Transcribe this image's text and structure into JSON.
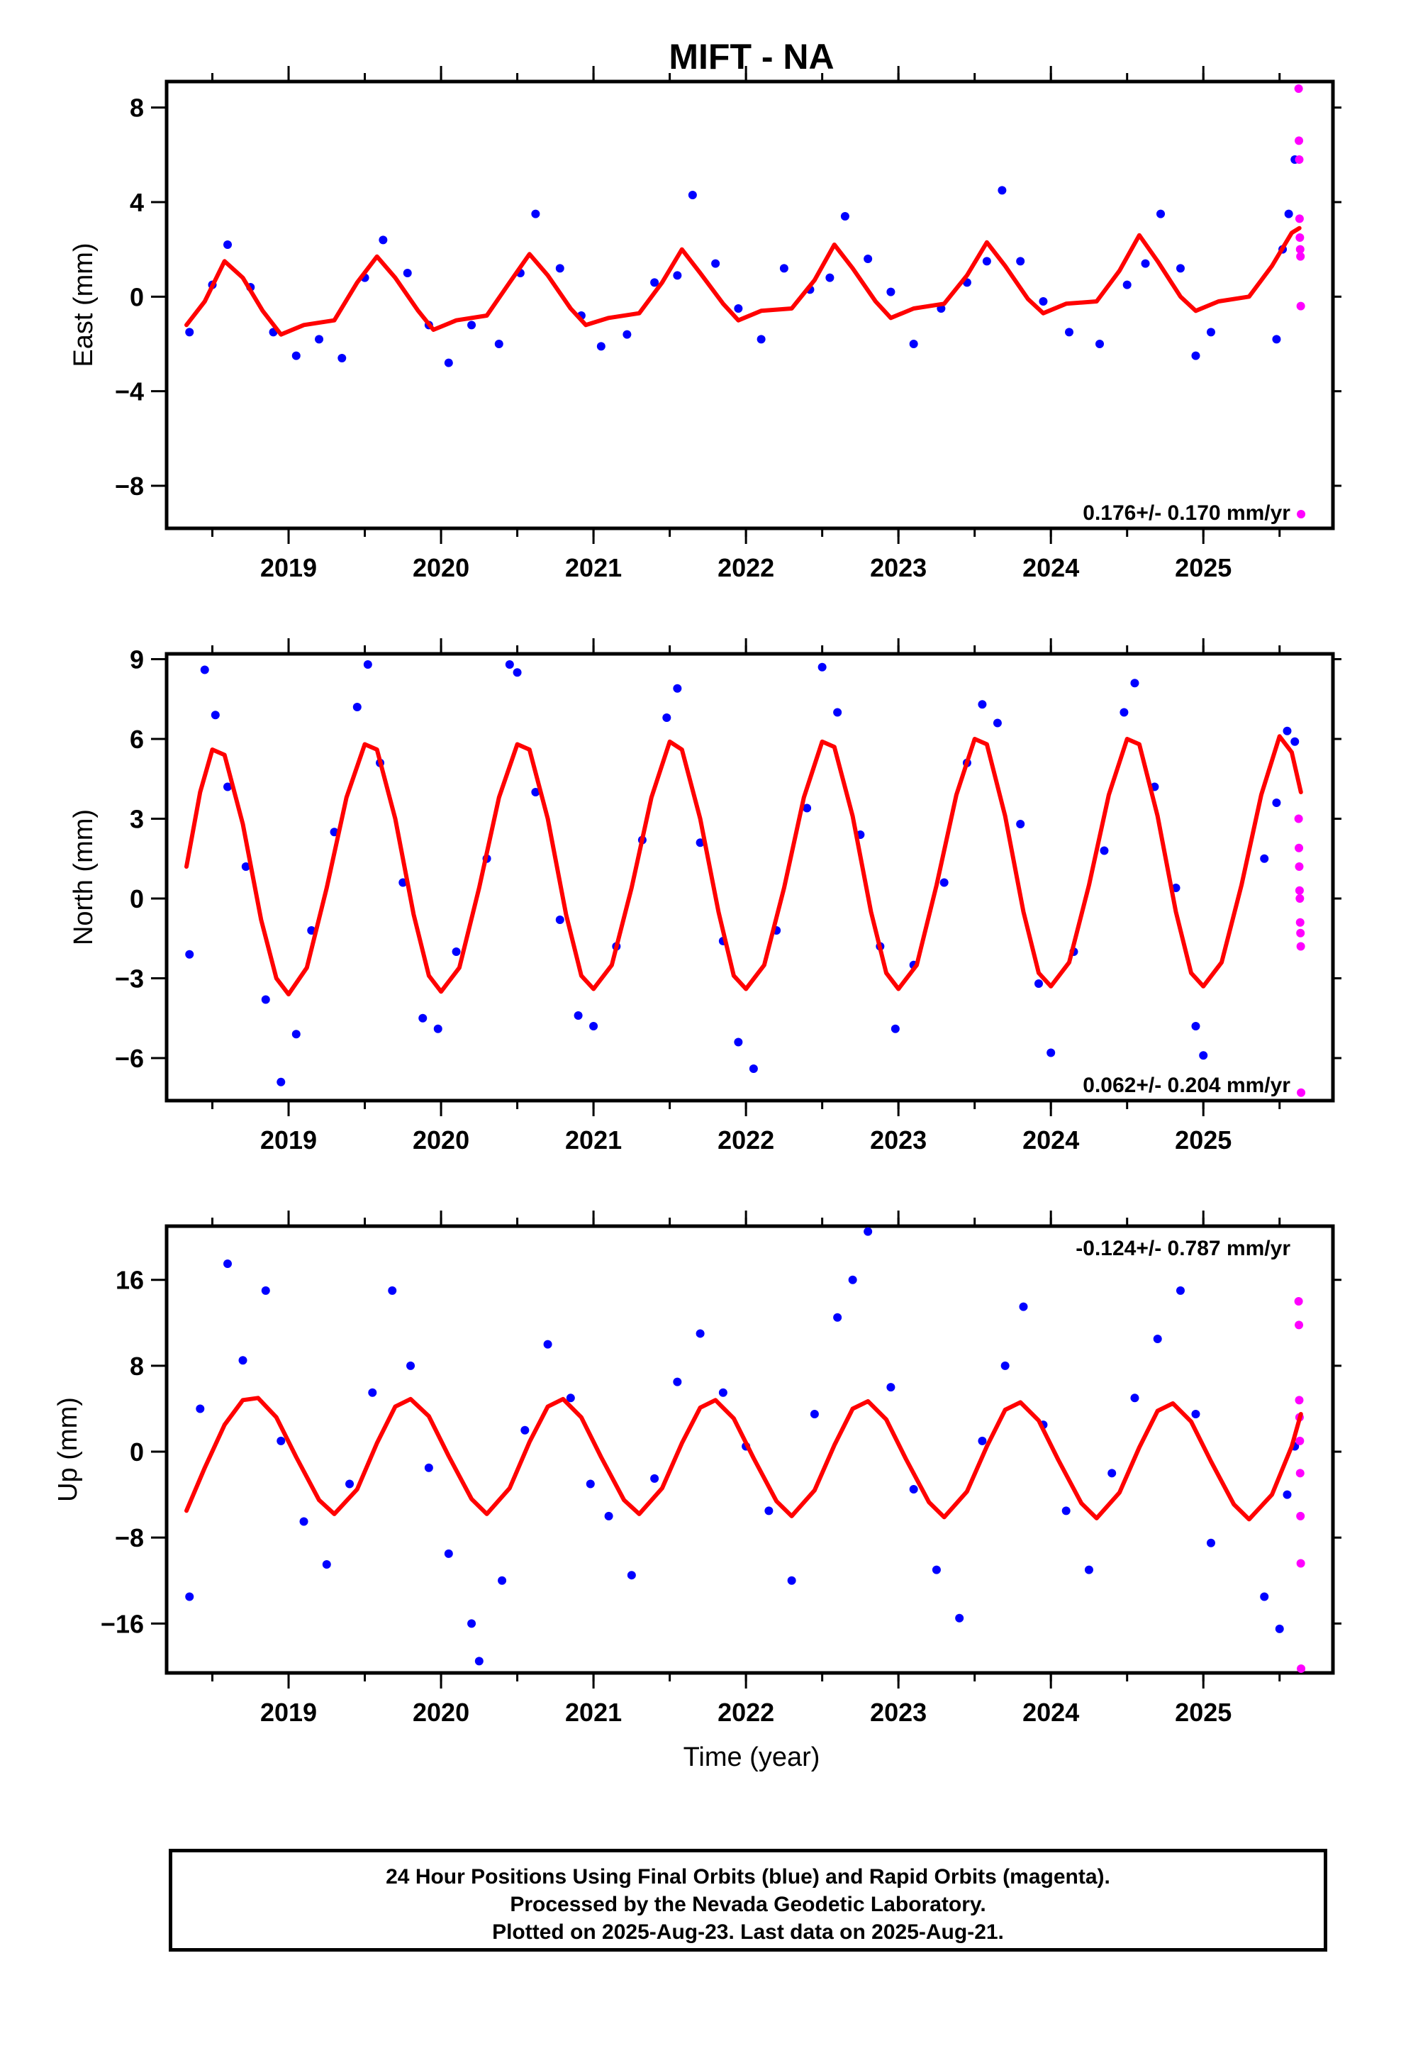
{
  "title": "MIFT - NA",
  "xlabel": "Time (year)",
  "footer": {
    "line1": "24 Hour Positions Using Final Orbits (blue) and Rapid Orbits (magenta).",
    "line2": "Processed by the Nevada Geodetic Laboratory.",
    "line3": "Plotted on 2025-Aug-23. Last data on 2025-Aug-21."
  },
  "colors": {
    "final_orbits": "#0000ff",
    "rapid_orbits": "#ff00ff",
    "model_fit": "#ff0000"
  },
  "chart_data": [
    {
      "type": "scatter",
      "panel": "east",
      "ylabel": "East (mm)",
      "xlim": [
        2018.2,
        2025.85
      ],
      "ylim": [
        -9.8,
        9.1
      ],
      "xticks": [
        2019,
        2020,
        2021,
        2022,
        2023,
        2024,
        2025
      ],
      "yticks": [
        8,
        4,
        0,
        -4,
        -8
      ],
      "rate_label": "0.176+/- 0.170 mm/yr",
      "rate_position": "bottom-right",
      "model": {
        "name": "red fit",
        "x": [
          2018.33,
          2018.45,
          2018.58,
          2018.7,
          2018.83,
          2018.95,
          2019.1,
          2019.3,
          2019.45,
          2019.58,
          2019.7,
          2019.85,
          2019.95,
          2020.1,
          2020.3,
          2020.45,
          2020.58,
          2020.7,
          2020.85,
          2020.95,
          2021.1,
          2021.3,
          2021.45,
          2021.58,
          2021.7,
          2021.85,
          2021.95,
          2022.1,
          2022.3,
          2022.45,
          2022.58,
          2022.7,
          2022.85,
          2022.95,
          2023.1,
          2023.3,
          2023.45,
          2023.58,
          2023.7,
          2023.85,
          2023.95,
          2024.1,
          2024.3,
          2024.45,
          2024.58,
          2024.7,
          2024.85,
          2024.95,
          2025.1,
          2025.3,
          2025.45,
          2025.58,
          2025.63
        ],
        "values": [
          -1.2,
          -0.2,
          1.5,
          0.8,
          -0.6,
          -1.6,
          -1.2,
          -1.0,
          0.6,
          1.7,
          0.8,
          -0.6,
          -1.4,
          -1.0,
          -0.8,
          0.6,
          1.8,
          0.9,
          -0.5,
          -1.2,
          -0.9,
          -0.7,
          0.6,
          2.0,
          1.0,
          -0.3,
          -1.0,
          -0.6,
          -0.5,
          0.7,
          2.2,
          1.2,
          -0.2,
          -0.9,
          -0.5,
          -0.3,
          0.9,
          2.3,
          1.3,
          -0.1,
          -0.7,
          -0.3,
          -0.2,
          1.1,
          2.6,
          1.5,
          0.0,
          -0.6,
          -0.2,
          0.0,
          1.3,
          2.7,
          2.9
        ]
      },
      "final_orbits": {
        "x": [
          2018.35,
          2018.5,
          2018.6,
          2018.75,
          2018.9,
          2019.05,
          2019.2,
          2019.35,
          2019.5,
          2019.62,
          2019.78,
          2019.92,
          2020.05,
          2020.2,
          2020.38,
          2020.52,
          2020.62,
          2020.78,
          2020.92,
          2021.05,
          2021.22,
          2021.4,
          2021.55,
          2021.65,
          2021.8,
          2021.95,
          2022.1,
          2022.25,
          2022.42,
          2022.55,
          2022.65,
          2022.8,
          2022.95,
          2023.1,
          2023.28,
          2023.45,
          2023.58,
          2023.68,
          2023.8,
          2023.95,
          2024.12,
          2024.32,
          2024.5,
          2024.62,
          2024.72,
          2024.85,
          2024.95,
          2025.05,
          2025.48,
          2025.52,
          2025.56,
          2025.6
        ],
        "values": [
          -1.5,
          0.5,
          2.2,
          0.4,
          -1.5,
          -2.5,
          -1.8,
          -2.6,
          0.8,
          2.4,
          1.0,
          -1.2,
          -2.8,
          -1.2,
          -2.0,
          1.0,
          3.5,
          1.2,
          -0.8,
          -2.1,
          -1.6,
          0.6,
          0.9,
          4.3,
          1.4,
          -0.5,
          -1.8,
          1.2,
          0.3,
          0.8,
          3.4,
          1.6,
          0.2,
          -2.0,
          -0.5,
          0.6,
          1.5,
          4.5,
          1.5,
          -0.2,
          -1.5,
          -2.0,
          0.5,
          1.4,
          3.5,
          1.2,
          -2.5,
          -1.5,
          -1.8,
          2.0,
          3.5,
          5.8
        ]
      },
      "rapid_orbits": {
        "x": [
          2025.625,
          2025.627,
          2025.629,
          2025.631,
          2025.633,
          2025.635,
          2025.637,
          2025.639,
          2025.641
        ],
        "values": [
          8.8,
          6.6,
          5.8,
          3.3,
          2.5,
          2.0,
          1.7,
          -0.4,
          -9.2
        ]
      }
    },
    {
      "type": "scatter",
      "panel": "north",
      "ylabel": "North (mm)",
      "xlim": [
        2018.2,
        2025.85
      ],
      "ylim": [
        -7.6,
        9.2
      ],
      "xticks": [
        2019,
        2020,
        2021,
        2022,
        2023,
        2024,
        2025
      ],
      "yticks": [
        9,
        6,
        3,
        0,
        -3,
        -6
      ],
      "rate_label": "0.062+/- 0.204 mm/yr",
      "rate_position": "bottom-right",
      "model": {
        "name": "red fit",
        "x": [
          2018.33,
          2018.42,
          2018.5,
          2018.58,
          2018.7,
          2018.82,
          2018.92,
          2019.0,
          2019.12,
          2019.25,
          2019.38,
          2019.5,
          2019.58,
          2019.7,
          2019.82,
          2019.92,
          2020.0,
          2020.12,
          2020.25,
          2020.38,
          2020.5,
          2020.58,
          2020.7,
          2020.82,
          2020.92,
          2021.0,
          2021.12,
          2021.25,
          2021.38,
          2021.5,
          2021.58,
          2021.7,
          2021.82,
          2021.92,
          2022.0,
          2022.12,
          2022.25,
          2022.38,
          2022.5,
          2022.58,
          2022.7,
          2022.82,
          2022.92,
          2023.0,
          2023.12,
          2023.25,
          2023.38,
          2023.5,
          2023.58,
          2023.7,
          2023.82,
          2023.92,
          2024.0,
          2024.12,
          2024.25,
          2024.38,
          2024.5,
          2024.58,
          2024.7,
          2024.82,
          2024.92,
          2025.0,
          2025.12,
          2025.25,
          2025.38,
          2025.5,
          2025.58,
          2025.64
        ],
        "values": [
          1.2,
          4.0,
          5.6,
          5.4,
          2.8,
          -0.8,
          -3.0,
          -3.6,
          -2.6,
          0.4,
          3.8,
          5.8,
          5.6,
          3.0,
          -0.6,
          -2.9,
          -3.5,
          -2.6,
          0.4,
          3.8,
          5.8,
          5.6,
          3.0,
          -0.6,
          -2.9,
          -3.4,
          -2.5,
          0.4,
          3.8,
          5.9,
          5.6,
          3.0,
          -0.5,
          -2.9,
          -3.4,
          -2.5,
          0.4,
          3.8,
          5.9,
          5.7,
          3.1,
          -0.5,
          -2.8,
          -3.4,
          -2.5,
          0.5,
          3.9,
          6.0,
          5.8,
          3.1,
          -0.5,
          -2.8,
          -3.3,
          -2.4,
          0.5,
          3.9,
          6.0,
          5.8,
          3.1,
          -0.5,
          -2.8,
          -3.3,
          -2.4,
          0.5,
          3.9,
          6.1,
          5.5,
          4.0
        ]
      },
      "final_orbits": {
        "x": [
          2018.35,
          2018.45,
          2018.52,
          2018.6,
          2018.72,
          2018.85,
          2018.95,
          2019.05,
          2019.15,
          2019.3,
          2019.45,
          2019.52,
          2019.6,
          2019.75,
          2019.88,
          2019.98,
          2020.1,
          2020.3,
          2020.45,
          2020.5,
          2020.62,
          2020.78,
          2020.9,
          2021.0,
          2021.15,
          2021.32,
          2021.48,
          2021.55,
          2021.7,
          2021.85,
          2021.95,
          2022.05,
          2022.2,
          2022.4,
          2022.5,
          2022.6,
          2022.75,
          2022.88,
          2022.98,
          2023.1,
          2023.3,
          2023.45,
          2023.55,
          2023.65,
          2023.8,
          2023.92,
          2024.0,
          2024.15,
          2024.35,
          2024.48,
          2024.55,
          2024.68,
          2024.82,
          2024.95,
          2025.0,
          2025.4,
          2025.48,
          2025.55,
          2025.6
        ],
        "values": [
          -2.1,
          8.6,
          6.9,
          4.2,
          1.2,
          -3.8,
          -6.9,
          -5.1,
          -1.2,
          2.5,
          7.2,
          8.8,
          5.1,
          0.6,
          -4.5,
          -4.9,
          -2.0,
          1.5,
          8.8,
          8.5,
          4.0,
          -0.8,
          -4.4,
          -4.8,
          -1.8,
          2.2,
          6.8,
          7.9,
          2.1,
          -1.6,
          -5.4,
          -6.4,
          -1.2,
          3.4,
          8.7,
          7.0,
          2.4,
          -1.8,
          -4.9,
          -2.5,
          0.6,
          5.1,
          7.3,
          6.6,
          2.8,
          -3.2,
          -5.8,
          -2.0,
          1.8,
          7.0,
          8.1,
          4.2,
          0.4,
          -4.8,
          -5.9,
          1.5,
          3.6,
          6.3,
          5.9
        ]
      },
      "rapid_orbits": {
        "x": [
          2025.625,
          2025.627,
          2025.629,
          2025.631,
          2025.633,
          2025.635,
          2025.637,
          2025.639,
          2025.641
        ],
        "values": [
          3.0,
          1.9,
          1.2,
          0.3,
          0.0,
          -0.9,
          -1.3,
          -1.8,
          -7.3
        ]
      }
    },
    {
      "type": "scatter",
      "panel": "up",
      "ylabel": "Up (mm)",
      "xlim": [
        2018.2,
        2025.85
      ],
      "ylim": [
        -20.6,
        21.0
      ],
      "xticks": [
        2019,
        2020,
        2021,
        2022,
        2023,
        2024,
        2025
      ],
      "yticks": [
        16,
        8,
        0,
        -8,
        -16
      ],
      "rate_label": "-0.124+/- 0.787 mm/yr",
      "rate_position": "top-right",
      "model": {
        "name": "red fit",
        "x": [
          2018.33,
          2018.45,
          2018.58,
          2018.7,
          2018.8,
          2018.92,
          2019.05,
          2019.2,
          2019.3,
          2019.45,
          2019.58,
          2019.7,
          2019.8,
          2019.92,
          2020.05,
          2020.2,
          2020.3,
          2020.45,
          2020.58,
          2020.7,
          2020.8,
          2020.92,
          2021.05,
          2021.2,
          2021.3,
          2021.45,
          2021.58,
          2021.7,
          2021.8,
          2021.92,
          2022.05,
          2022.2,
          2022.3,
          2022.45,
          2022.58,
          2022.7,
          2022.8,
          2022.92,
          2023.05,
          2023.2,
          2023.3,
          2023.45,
          2023.58,
          2023.7,
          2023.8,
          2023.92,
          2024.05,
          2024.2,
          2024.3,
          2024.45,
          2024.58,
          2024.7,
          2024.8,
          2024.92,
          2025.05,
          2025.2,
          2025.3,
          2025.45,
          2025.58,
          2025.64
        ],
        "values": [
          -5.5,
          -1.5,
          2.5,
          4.8,
          5.0,
          3.2,
          -0.5,
          -4.5,
          -5.8,
          -3.5,
          0.8,
          4.2,
          4.9,
          3.3,
          -0.4,
          -4.4,
          -5.8,
          -3.4,
          0.9,
          4.2,
          4.9,
          3.2,
          -0.5,
          -4.5,
          -5.8,
          -3.4,
          0.8,
          4.1,
          4.8,
          3.1,
          -0.6,
          -4.6,
          -6.0,
          -3.6,
          0.6,
          4.0,
          4.7,
          3.0,
          -0.7,
          -4.7,
          -6.1,
          -3.7,
          0.5,
          3.9,
          4.6,
          2.9,
          -0.8,
          -4.8,
          -6.2,
          -3.8,
          0.4,
          3.8,
          4.5,
          2.8,
          -0.9,
          -4.9,
          -6.3,
          -4.0,
          0.5,
          3.5
        ]
      },
      "final_orbits": {
        "x": [
          2018.35,
          2018.42,
          2018.6,
          2018.7,
          2018.85,
          2018.95,
          2019.1,
          2019.25,
          2019.4,
          2019.55,
          2019.68,
          2019.8,
          2019.92,
          2020.05,
          2020.2,
          2020.25,
          2020.4,
          2020.55,
          2020.7,
          2020.85,
          2020.98,
          2021.1,
          2021.25,
          2021.4,
          2021.55,
          2021.7,
          2021.85,
          2022.0,
          2022.15,
          2022.3,
          2022.45,
          2022.6,
          2022.7,
          2022.8,
          2022.95,
          2023.1,
          2023.25,
          2023.4,
          2023.55,
          2023.7,
          2023.82,
          2023.95,
          2024.1,
          2024.25,
          2024.4,
          2024.55,
          2024.7,
          2024.85,
          2024.95,
          2025.05,
          2025.4,
          2025.5,
          2025.55,
          2025.6
        ],
        "values": [
          -13.5,
          4.0,
          17.5,
          8.5,
          15.0,
          1.0,
          -6.5,
          -10.5,
          -3.0,
          5.5,
          15.0,
          8.0,
          -1.5,
          -9.5,
          -16.0,
          -19.5,
          -12.0,
          2.0,
          10.0,
          5.0,
          -3.0,
          -6.0,
          -11.5,
          -2.5,
          6.5,
          11.0,
          5.5,
          0.5,
          -5.5,
          -12.0,
          3.5,
          12.5,
          16.0,
          20.5,
          6.0,
          -3.5,
          -11.0,
          -15.5,
          1.0,
          8.0,
          13.5,
          2.5,
          -5.5,
          -11.0,
          -2.0,
          5.0,
          10.5,
          15.0,
          3.5,
          -8.5,
          -13.5,
          -16.5,
          -4.0,
          0.5
        ]
      },
      "rapid_orbits": {
        "x": [
          2025.625,
          2025.627,
          2025.629,
          2025.631,
          2025.633,
          2025.635,
          2025.637,
          2025.639,
          2025.641
        ],
        "values": [
          14.0,
          11.8,
          4.8,
          3.2,
          1.0,
          -2.0,
          -6.0,
          -10.4,
          -20.2
        ]
      }
    }
  ]
}
